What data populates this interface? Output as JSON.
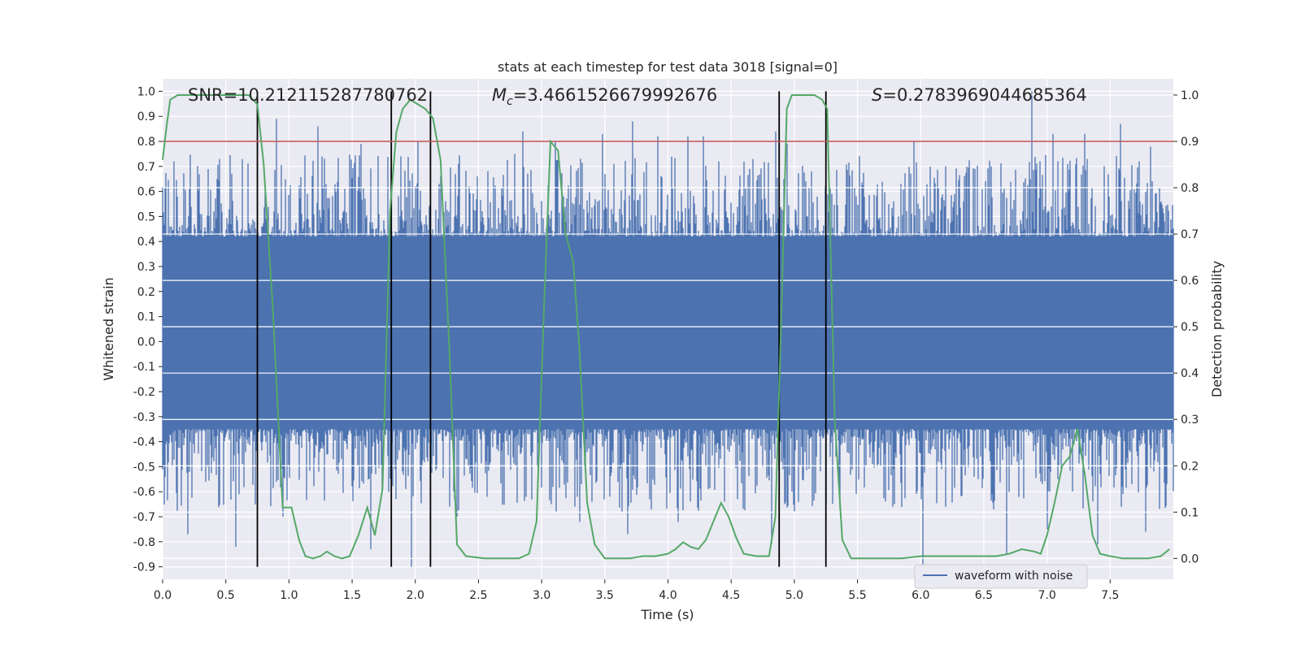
{
  "chart_data": {
    "type": "line",
    "title": "stats at each timestep for test data 3018 [signal=0]",
    "xlabel": "Time (s)",
    "ylabel_left": "Whitened strain",
    "ylabel_right": "Detection probability",
    "xlim": [
      0.0,
      8.0
    ],
    "ylim_left": [
      -0.95,
      1.05
    ],
    "ylim_right": [
      -0.045,
      1.035
    ],
    "x_ticks": [
      "0.0",
      "0.5",
      "1.0",
      "1.5",
      "2.0",
      "2.5",
      "3.0",
      "3.5",
      "4.0",
      "4.5",
      "5.0",
      "5.5",
      "6.0",
      "6.5",
      "7.0",
      "7.5"
    ],
    "y_ticks_left": [
      "-0.9",
      "-0.8",
      "-0.7",
      "-0.6",
      "-0.5",
      "-0.4",
      "-0.3",
      "-0.2",
      "-0.1",
      "0.0",
      "0.1",
      "0.2",
      "0.3",
      "0.4",
      "0.5",
      "0.6",
      "0.7",
      "0.8",
      "0.9",
      "1.0"
    ],
    "y_ticks_right": [
      "0.0",
      "0.1",
      "0.2",
      "0.3",
      "0.4",
      "0.5",
      "0.6",
      "0.7",
      "0.8",
      "0.9",
      "1.0"
    ],
    "grid": true,
    "annotations": {
      "snr": "SNR=10.212115287780762",
      "mc_symbol": "M",
      "mc_sub": "c",
      "mc_value": "=3.4661526679992676",
      "s_symbol": "S",
      "s_value": "=0.2783969044685364"
    },
    "threshold_right": 0.9,
    "vertical_markers": [
      0.75,
      1.81,
      2.12,
      4.88,
      5.25
    ],
    "series": [
      {
        "name": "waveform with noise",
        "sample_rate_hz": 2048,
        "axis": "left",
        "envelope_bulk": [
          -0.35,
          0.42
        ],
        "peaks_positive": [
          [
            0.09,
            0.72
          ],
          [
            0.45,
            0.73
          ],
          [
            0.9,
            0.89
          ],
          [
            1.23,
            0.86
          ],
          [
            1.57,
            0.79
          ],
          [
            2.02,
            0.8
          ],
          [
            2.85,
            0.84
          ],
          [
            3.11,
            0.8
          ],
          [
            3.48,
            0.83
          ],
          [
            3.72,
            0.88
          ],
          [
            3.92,
            0.82
          ],
          [
            4.16,
            0.82
          ],
          [
            4.28,
            0.82
          ],
          [
            4.85,
            0.84
          ],
          [
            4.94,
            0.79
          ],
          [
            5.95,
            0.8
          ],
          [
            6.88,
            1.0
          ],
          [
            7.05,
            0.83
          ],
          [
            7.3,
            0.83
          ],
          [
            7.58,
            0.87
          ],
          [
            7.82,
            0.78
          ]
        ],
        "peaks_negative": [
          [
            0.02,
            -0.54
          ],
          [
            0.2,
            -0.77
          ],
          [
            0.58,
            -0.82
          ],
          [
            0.95,
            -0.7
          ],
          [
            1.65,
            -0.83
          ],
          [
            1.97,
            -0.9
          ],
          [
            2.33,
            -0.7
          ],
          [
            2.88,
            -0.62
          ],
          [
            3.3,
            -0.72
          ],
          [
            3.68,
            -0.77
          ],
          [
            4.08,
            -0.72
          ],
          [
            4.55,
            -0.63
          ],
          [
            4.82,
            -0.81
          ],
          [
            6.02,
            -0.9
          ],
          [
            6.68,
            -0.85
          ],
          [
            7.0,
            -0.75
          ],
          [
            7.4,
            -0.81
          ],
          [
            7.78,
            -0.76
          ]
        ],
        "color": "#4c72b0"
      },
      {
        "name": "Detection probability",
        "axis": "right",
        "color": "#55a868",
        "x": [
          0.0,
          0.03,
          0.06,
          0.12,
          0.2,
          0.3,
          0.4,
          0.5,
          0.6,
          0.68,
          0.75,
          0.8,
          0.87,
          0.95,
          1.02,
          1.08,
          1.13,
          1.19,
          1.25,
          1.3,
          1.36,
          1.42,
          1.48,
          1.55,
          1.62,
          1.68,
          1.74,
          1.8,
          1.85,
          1.9,
          1.96,
          2.02,
          2.08,
          2.14,
          2.2,
          2.27,
          2.33,
          2.4,
          2.55,
          2.7,
          2.82,
          2.9,
          2.96,
          3.02,
          3.07,
          3.13,
          3.19,
          3.25,
          3.3,
          3.36,
          3.42,
          3.5,
          3.6,
          3.7,
          3.8,
          3.9,
          4.0,
          4.06,
          4.12,
          4.18,
          4.24,
          4.3,
          4.36,
          4.42,
          4.48,
          4.54,
          4.6,
          4.7,
          4.8,
          4.85,
          4.9,
          4.94,
          4.98,
          5.04,
          5.1,
          5.16,
          5.22,
          5.26,
          5.32,
          5.38,
          5.45,
          5.55,
          5.7,
          5.85,
          6.0,
          6.15,
          6.3,
          6.45,
          6.6,
          6.7,
          6.8,
          6.9,
          6.95,
          7.0,
          7.06,
          7.12,
          7.18,
          7.24,
          7.3,
          7.36,
          7.42,
          7.5,
          7.6,
          7.7,
          7.8,
          7.9,
          7.97
        ],
        "y": [
          0.86,
          0.93,
          0.99,
          1.0,
          1.0,
          1.0,
          1.0,
          1.0,
          1.0,
          1.0,
          0.98,
          0.85,
          0.55,
          0.11,
          0.11,
          0.04,
          0.005,
          0.0,
          0.005,
          0.015,
          0.005,
          0.0,
          0.005,
          0.05,
          0.11,
          0.05,
          0.15,
          0.75,
          0.92,
          0.97,
          0.99,
          0.98,
          0.97,
          0.95,
          0.86,
          0.45,
          0.03,
          0.005,
          0.0,
          0.0,
          0.0,
          0.01,
          0.08,
          0.55,
          0.9,
          0.88,
          0.7,
          0.64,
          0.45,
          0.12,
          0.03,
          0.0,
          0.0,
          0.0,
          0.005,
          0.005,
          0.01,
          0.02,
          0.035,
          0.025,
          0.02,
          0.04,
          0.08,
          0.12,
          0.09,
          0.045,
          0.01,
          0.005,
          0.005,
          0.09,
          0.55,
          0.97,
          1.0,
          1.0,
          1.0,
          1.0,
          0.99,
          0.97,
          0.3,
          0.04,
          0.0,
          0.0,
          0.0,
          0.0,
          0.005,
          0.005,
          0.005,
          0.005,
          0.005,
          0.01,
          0.02,
          0.015,
          0.01,
          0.05,
          0.12,
          0.2,
          0.22,
          0.28,
          0.18,
          0.05,
          0.01,
          0.005,
          0.0,
          0.0,
          0.0,
          0.005,
          0.02
        ]
      }
    ],
    "legend": {
      "placement": "lower-right",
      "label": "waveform with noise"
    }
  }
}
